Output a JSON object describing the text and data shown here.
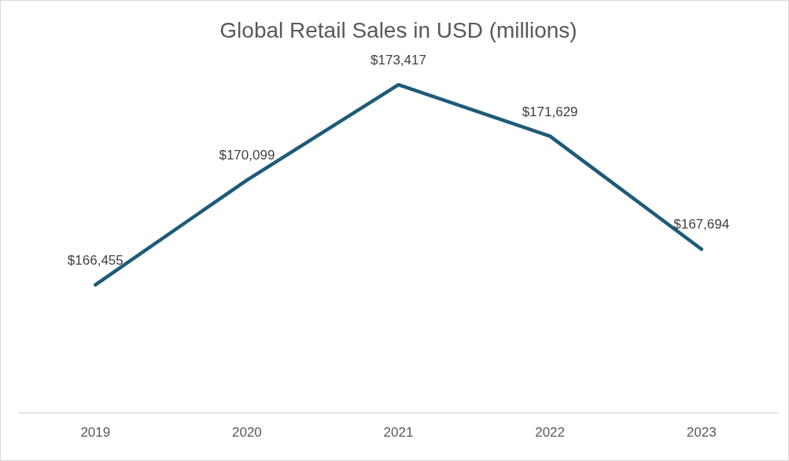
{
  "chart_data": {
    "type": "line",
    "title": "Global Retail Sales in USD (millions)",
    "categories": [
      "2019",
      "2020",
      "2021",
      "2022",
      "2023"
    ],
    "series": [
      {
        "color": "#1d5b79",
        "values": [
          166455,
          170099,
          173417,
          171629,
          167694
        ],
        "value_labels": [
          "$166,455",
          "$170,099",
          "$173,417",
          "$171,629",
          "$167,694"
        ]
      }
    ],
    "tick_labels": "x",
    "grid": false,
    "legend": false,
    "marker": "none"
  }
}
